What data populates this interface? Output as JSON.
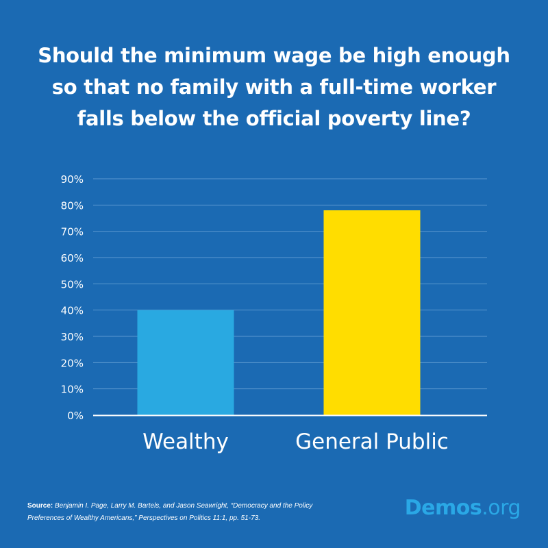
{
  "title_lines": [
    "Should the minimum wage be high enough",
    "so that no family with a full-time worker",
    "falls below the official poverty line?"
  ],
  "chart_data": {
    "type": "bar",
    "title": "Should the minimum wage be high enough so that no family with a full-time worker falls below the official poverty line?",
    "categories": [
      "Wealthy",
      "General Public"
    ],
    "values": [
      40,
      78
    ],
    "value_unit": "%",
    "bar_colors": [
      "#29a9e1",
      "#ffdd00"
    ],
    "ylim": [
      0,
      90
    ],
    "yticks": [
      0,
      10,
      20,
      30,
      40,
      50,
      60,
      70,
      80,
      90
    ],
    "ytick_labels": [
      "0%",
      "10%",
      "20%",
      "30%",
      "40%",
      "50%",
      "60%",
      "70%",
      "80%",
      "90%"
    ],
    "grid": true,
    "legend": "none"
  },
  "source": {
    "label": "Source:",
    "line1": "Benjamin I. Page, Larry M. Bartels, and Jason Seawright, “Democracy and the Policy",
    "line2": "Preferences of Wealthy Americans,” Perspectives on Politics 11:1, pp. 51-73."
  },
  "logo": {
    "main": "Demos",
    "tld": ".org"
  },
  "colors": {
    "background": "#1b6ab3",
    "gridline": "#5b98d0",
    "axis": "#ffffff",
    "text": "#ffffff",
    "logo": "#2aa8e6"
  }
}
